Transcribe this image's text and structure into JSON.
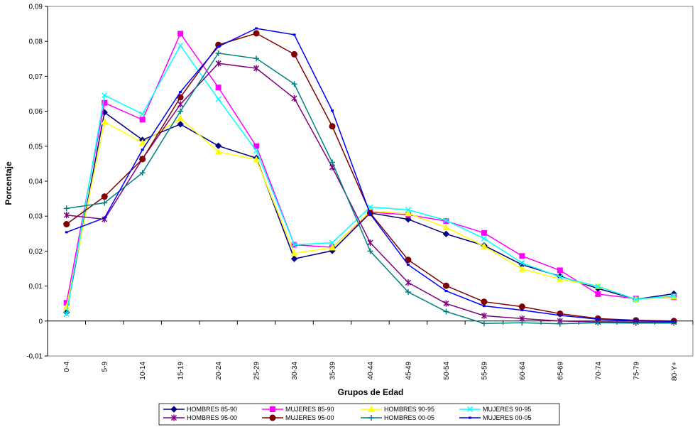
{
  "chart_data": {
    "type": "line",
    "title": "",
    "xlabel": "Grupos de Edad",
    "ylabel": "Porcentaje",
    "ylim": [
      -0.01,
      0.09
    ],
    "yticks": [
      -0.01,
      0,
      0.01,
      0.02,
      0.03,
      0.04,
      0.05,
      0.06,
      0.07,
      0.08,
      0.09
    ],
    "ytick_labels": [
      "-0,01",
      "0",
      "0,01",
      "0,02",
      "0,03",
      "0,04",
      "0,05",
      "0,06",
      "0,07",
      "0,08",
      "0,09"
    ],
    "categories": [
      "0-4",
      "5-9",
      "10-14",
      "15-19",
      "20-24",
      "25-29",
      "30-34",
      "35-39",
      "40-44",
      "45-49",
      "50-54",
      "55-59",
      "60-64",
      "65-69",
      "70-74",
      "75-79",
      "80-Y+"
    ],
    "grid": false,
    "legend_position": "bottom",
    "series": [
      {
        "name": "HOMBRES 85-90",
        "color": "#000080",
        "marker": "diamond",
        "values": [
          0.0025,
          0.0597,
          0.0518,
          0.0563,
          0.0501,
          0.0466,
          0.0178,
          0.0201,
          0.0309,
          0.0291,
          0.0249,
          0.0216,
          0.0161,
          0.0128,
          0.0093,
          0.0062,
          0.0078
        ]
      },
      {
        "name": "MUJERES 85-90",
        "color": "#FF00FF",
        "marker": "square",
        "values": [
          0.0052,
          0.0624,
          0.0576,
          0.0822,
          0.0668,
          0.05,
          0.0218,
          0.0211,
          0.0311,
          0.0304,
          0.0286,
          0.0252,
          0.0186,
          0.0145,
          0.0077,
          0.0064,
          0.0068
        ]
      },
      {
        "name": "HOMBRES 90-95",
        "color": "#FFFF00",
        "marker": "triangle",
        "values": [
          0.004,
          0.057,
          0.051,
          0.058,
          0.0484,
          0.0462,
          0.0194,
          0.021,
          0.0314,
          0.0308,
          0.0268,
          0.0214,
          0.0149,
          0.012,
          0.01,
          0.0062,
          0.007
        ]
      },
      {
        "name": "MUJERES 90-95",
        "color": "#00FFFF",
        "marker": "x",
        "values": [
          0.002,
          0.0646,
          0.0592,
          0.0788,
          0.0635,
          0.0487,
          0.0218,
          0.0224,
          0.0326,
          0.0318,
          0.0288,
          0.0236,
          0.0166,
          0.0126,
          0.0099,
          0.0062,
          0.0072
        ]
      },
      {
        "name": "HOMBRES 95-00",
        "color": "#800080",
        "marker": "star",
        "values": [
          0.0303,
          0.0291,
          0.0464,
          0.062,
          0.0737,
          0.0723,
          0.0637,
          0.044,
          0.0224,
          0.011,
          0.005,
          0.0015,
          0.0007,
          0.0,
          -0.0003,
          -0.0003,
          -0.0003
        ]
      },
      {
        "name": "MUJERES 95-00",
        "color": "#800000",
        "marker": "circle",
        "values": [
          0.0277,
          0.0356,
          0.0463,
          0.064,
          0.079,
          0.0823,
          0.0763,
          0.0557,
          0.0309,
          0.0175,
          0.0101,
          0.0055,
          0.0041,
          0.0021,
          0.0007,
          0.0002,
          0.0
        ]
      },
      {
        "name": "HOMBRES 00-05",
        "color": "#008080",
        "marker": "plus",
        "values": [
          0.0322,
          0.0338,
          0.0424,
          0.06,
          0.0766,
          0.0751,
          0.0678,
          0.0454,
          0.02,
          0.0083,
          0.0027,
          -0.0007,
          -0.0005,
          -0.0008,
          -0.0005,
          -0.0006,
          -0.0006
        ]
      },
      {
        "name": "MUJERES 00-05",
        "color": "#0000FF",
        "marker": "dash",
        "values": [
          0.0254,
          0.0295,
          0.049,
          0.0655,
          0.0785,
          0.0837,
          0.0819,
          0.0602,
          0.0306,
          0.0161,
          0.0086,
          0.0043,
          0.0031,
          0.0016,
          0.0005,
          0.0001,
          -0.0001
        ]
      }
    ]
  }
}
